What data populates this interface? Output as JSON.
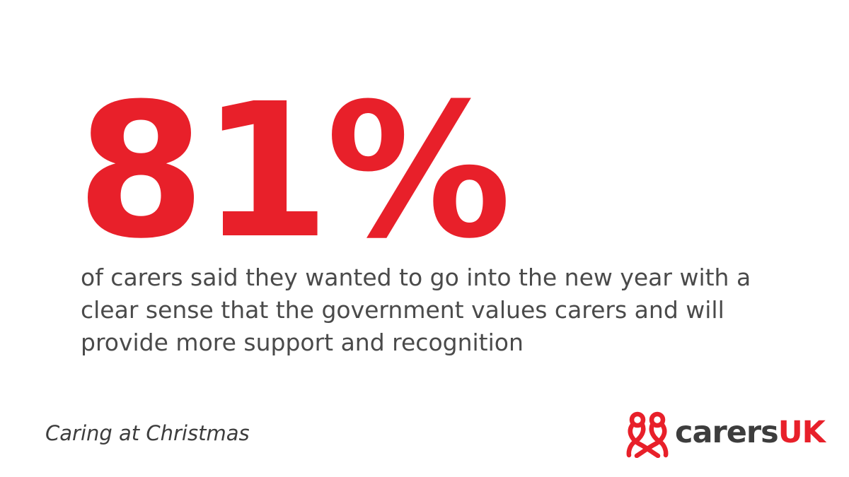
{
  "stat": {
    "value": "81%"
  },
  "caption": "of carers said they wanted to go into the new year with a clear sense that the government values carers and will provide more support and recognition",
  "campaign": "Caring at Christmas",
  "logo": {
    "word_primary": "carers",
    "word_secondary": "UK",
    "icon": "ribbon-figures-icon"
  },
  "colors": {
    "accent_red": "#e8202a",
    "text_grey": "#4a4a4a",
    "logo_grey": "#3d3d3d"
  }
}
